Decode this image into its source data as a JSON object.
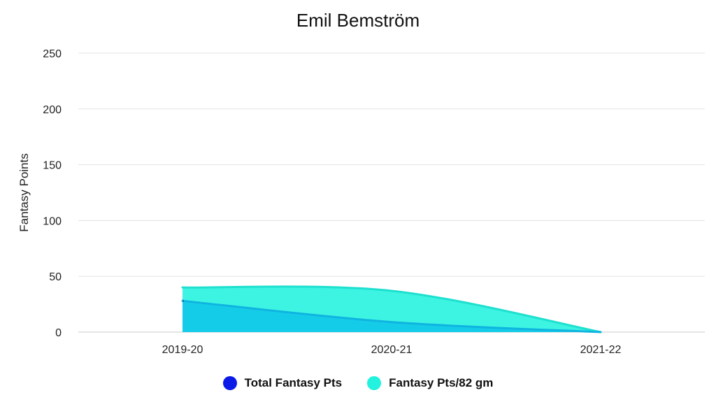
{
  "chart_data": {
    "type": "area",
    "title": "Emil Bemström",
    "xlabel": "",
    "ylabel": "Fantasy Points",
    "categories": [
      "2019-20",
      "2020-21",
      "2021-22"
    ],
    "ylim": [
      0,
      250
    ],
    "yticks": [
      0,
      50,
      100,
      150,
      200,
      250
    ],
    "grid": true,
    "legend_position": "bottom",
    "series": [
      {
        "name": "Total Fantasy Pts",
        "values": [
          28,
          9,
          0
        ],
        "color": "#0a1be8"
      },
      {
        "name": "Fantasy Pts/82 gm",
        "values": [
          40,
          37,
          0
        ],
        "color": "#22f2de"
      }
    ]
  }
}
